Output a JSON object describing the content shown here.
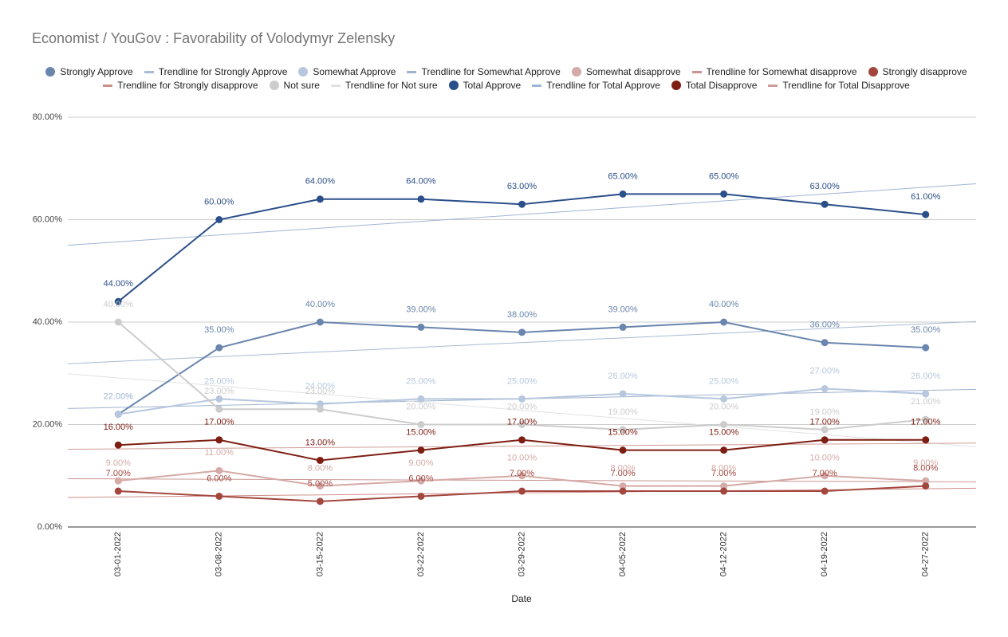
{
  "chart_data": {
    "type": "line",
    "title": "Economist / YouGov :  Favorability of Volodymyr Zelensky",
    "x_label": "Date",
    "categories": [
      "03-01-2022",
      "03-08-2022",
      "03-15-2022",
      "03-22-2022",
      "03-29-2022",
      "04-05-2022",
      "04-12-2022",
      "04-19-2022",
      "04-27-2022"
    ],
    "ylim": [
      0,
      80
    ],
    "yticks": [
      {
        "value": 0,
        "label": "0.00%"
      },
      {
        "value": 20,
        "label": "20.00%"
      },
      {
        "value": 40,
        "label": "40.00%"
      },
      {
        "value": 60,
        "label": "60.00%"
      },
      {
        "value": 80,
        "label": "80.00%"
      }
    ],
    "grid": true,
    "legend": "top",
    "series": [
      {
        "name": "Strongly Approve",
        "color": "#6a85ae",
        "values": [
          22,
          35,
          40,
          39,
          38,
          39,
          40,
          36,
          35
        ],
        "value_labels": [
          "22.00%",
          "35.00%",
          "40.00%",
          "39.00%",
          "38.00%",
          "39.00%",
          "40.00%",
          "36.00%",
          "35.00%"
        ],
        "trendline": {
          "name": "Trendline for Strongly Approve",
          "color": "#a9bad3"
        }
      },
      {
        "name": "Somewhat Approve",
        "color": "#b7c7de",
        "values": [
          22,
          25,
          24,
          25,
          25,
          26,
          25,
          27,
          26
        ],
        "value_labels": [
          "22.00%",
          "25.00%",
          "24.00%",
          "25.00%",
          "25.00%",
          "26.00%",
          "25.00%",
          "27.00%",
          "26.00%"
        ],
        "trendline": {
          "name": "Trendline for Somewhat Approve",
          "color": "#9fb3cf"
        }
      },
      {
        "name": "Somewhat disapprove",
        "color": "#d5aaa7",
        "values": [
          9,
          11,
          8,
          9,
          10,
          8,
          8,
          10,
          9
        ],
        "value_labels": [
          "9.00%",
          "11.00%",
          "8.00%",
          "9.00%",
          "10.00%",
          "8.00%",
          "8.00%",
          "10.00%",
          "9.00%"
        ],
        "trendline": {
          "name": "Trendline for Somewhat disapprove",
          "color": "#c99592"
        }
      },
      {
        "name": "Strongly disapprove",
        "color": "#a3473e",
        "values": [
          7,
          6,
          5,
          6,
          7,
          7,
          7,
          7,
          8
        ],
        "value_labels": [
          "7.00%",
          "6.00%",
          "5.00%",
          "6.00%",
          "7.00%",
          "7.00%",
          "7.00%",
          "7.00%",
          "8.00%"
        ],
        "trendline": {
          "name": "Trendline for Strongly disapprove",
          "color": "#cf8f89"
        }
      },
      {
        "name": "Not sure",
        "color": "#cccccc",
        "values": [
          40,
          23,
          23,
          20,
          20,
          19,
          20,
          19,
          21
        ],
        "value_labels": [
          "40.00%",
          "23.00%",
          "23.00%",
          "20.00%",
          "20.00%",
          "19.00%",
          "20.00%",
          "19.00%",
          "21.00%"
        ],
        "trendline": {
          "name": "Trendline for Not sure",
          "color": "#e2e2e2"
        }
      },
      {
        "name": "Total Approve",
        "color": "#2b4f8a",
        "values": [
          44,
          60,
          64,
          64,
          63,
          65,
          65,
          63,
          61
        ],
        "value_labels": [
          "44.00%",
          "60.00%",
          "64.00%",
          "64.00%",
          "63.00%",
          "65.00%",
          "65.00%",
          "63.00%",
          "61.00%"
        ],
        "trendline": {
          "name": "Trendline for Total Approve",
          "color": "#9fb5d6"
        }
      },
      {
        "name": "Total Disapprove",
        "color": "#7e1e13",
        "values": [
          16,
          17,
          13,
          15,
          17,
          15,
          15,
          17,
          17
        ],
        "value_labels": [
          "16.00%",
          "17.00%",
          "13.00%",
          "15.00%",
          "17.00%",
          "15.00%",
          "15.00%",
          "17.00%",
          "17.00%"
        ],
        "trendline": {
          "name": "Trendline for Total Disapprove",
          "color": "#cf9d97"
        }
      }
    ]
  }
}
